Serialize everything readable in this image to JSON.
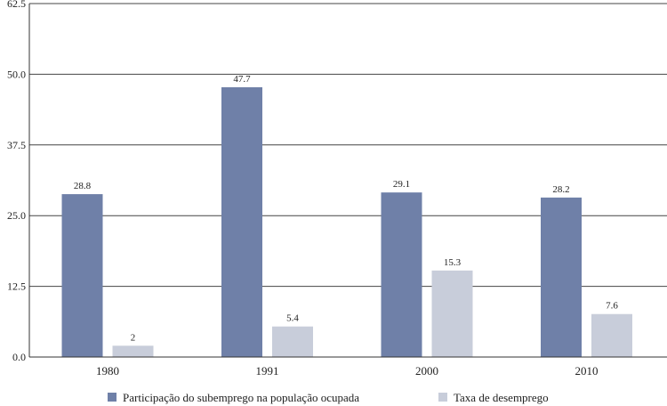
{
  "chart_data": {
    "type": "bar",
    "title": "",
    "xlabel": "",
    "ylabel": "",
    "categories": [
      "1980",
      "1991",
      "2000",
      "2010"
    ],
    "series": [
      {
        "name": "Participação do subemprego na população ocupada",
        "values": [
          28.8,
          47.7,
          29.1,
          28.2
        ],
        "color": "#6f80a8"
      },
      {
        "name": "Taxa de desemprego",
        "values": [
          2,
          5.4,
          15.3,
          7.6
        ],
        "color": "#c8cdda"
      }
    ],
    "value_labels": [
      [
        "28.8",
        "47.7",
        "29.1",
        "28.2"
      ],
      [
        "2",
        "5.4",
        "15.3",
        "7.6"
      ]
    ],
    "ylim": [
      0,
      62.5
    ],
    "yticks": [
      "0.0",
      "12.5",
      "25.0",
      "37.5",
      "50.0",
      "62.5"
    ],
    "grid": true,
    "legend_position": "bottom"
  }
}
